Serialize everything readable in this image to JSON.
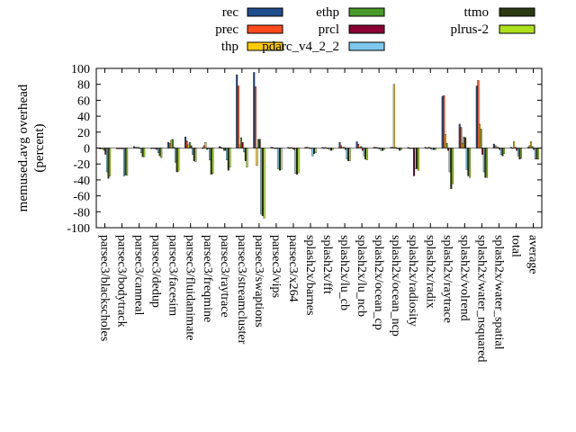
{
  "chart_data": {
    "type": "bar",
    "title": "",
    "xlabel": "",
    "ylabel": "memused.avg overhead\n(percent)",
    "ylim": [
      -100,
      100
    ],
    "yticks": [
      -100,
      -80,
      -60,
      -40,
      -20,
      0,
      20,
      40,
      60,
      80,
      100
    ],
    "grid": false,
    "legend": "top",
    "categories": [
      "parsec3/blackscholes",
      "parsec3/bodytrack",
      "parsec3/canneal",
      "parsec3/dedup",
      "parsec3/facesim",
      "parsec3/fluidanimate",
      "parsec3/freqmine",
      "parsec3/raytrace",
      "parsec3/streamcluster",
      "parsec3/swaptions",
      "parsec3/vips",
      "parsec3/x264",
      "splash2x/barnes",
      "splash2x/fft",
      "splash2x/lu_cb",
      "splash2x/lu_ncb",
      "splash2x/ocean_cp",
      "splash2x/ocean_ncp",
      "splash2x/radiosity",
      "splash2x/radix",
      "splash2x/raytrace",
      "splash2x/volrend",
      "splash2x/water_nsquared",
      "splash2x/water_spatial",
      "total",
      "average"
    ],
    "series": [
      {
        "name": "rec",
        "color": "#1f4e8c",
        "values": [
          -1,
          -1,
          2,
          0,
          7,
          14,
          0,
          2,
          92,
          95,
          1,
          1,
          1,
          1,
          7,
          8,
          1,
          1,
          1,
          1,
          65,
          30,
          78,
          5,
          1,
          1
        ]
      },
      {
        "name": "prec",
        "color": "#ff4a1c",
        "values": [
          -1,
          -1,
          1,
          0,
          6,
          9,
          3,
          1,
          78,
          77,
          1,
          0,
          1,
          0,
          3,
          5,
          1,
          1,
          0,
          0,
          66,
          26,
          85,
          3,
          0,
          3
        ]
      },
      {
        "name": "thp",
        "color": "#ffcc00",
        "values": [
          -1,
          -1,
          1,
          0,
          10,
          4,
          7,
          0,
          4,
          -22,
          0,
          1,
          1,
          1,
          1,
          1,
          1,
          80,
          0,
          1,
          17,
          6,
          30,
          1,
          8,
          8
        ]
      },
      {
        "name": "ethp",
        "color": "#4a9a2a",
        "values": [
          -3,
          -1,
          1,
          -1,
          11,
          7,
          -2,
          -3,
          13,
          11,
          0,
          0,
          0,
          0,
          1,
          2,
          0,
          1,
          0,
          1,
          6,
          14,
          24,
          1,
          1,
          2
        ]
      },
      {
        "name": "prcl",
        "color": "#8a0030",
        "values": [
          -8,
          -1,
          0,
          -2,
          1,
          3,
          -1,
          -3,
          7,
          11,
          0,
          -2,
          0,
          0,
          -2,
          -3,
          -1,
          0,
          -35,
          -1,
          -3,
          13,
          -8,
          -2,
          -3,
          -2
        ]
      },
      {
        "name": "pdarc_v4_2_2",
        "color": "#7ec8f0",
        "values": [
          -30,
          -35,
          -6,
          -6,
          -18,
          -8,
          -15,
          -15,
          -5,
          -83,
          -26,
          -32,
          -10,
          -2,
          -14,
          -10,
          -3,
          -1,
          -26,
          -2,
          -30,
          -27,
          -30,
          -8,
          -10,
          -14
        ]
      },
      {
        "name": "ttmo",
        "color": "#2b3a12",
        "values": [
          -38,
          -34,
          -11,
          -10,
          -30,
          -16,
          -33,
          -28,
          -16,
          -85,
          -28,
          -33,
          -7,
          -3,
          -16,
          -14,
          -3,
          -3,
          -26,
          -2,
          -51,
          -35,
          -37,
          -10,
          -14,
          -14
        ]
      },
      {
        "name": "plrus-2",
        "color": "#aee01c",
        "values": [
          -35,
          -34,
          -11,
          -12,
          -29,
          -17,
          -32,
          -24,
          -24,
          -88,
          -27,
          -31,
          -6,
          -2,
          -16,
          -15,
          -2,
          -2,
          -28,
          -2,
          -45,
          -37,
          -37,
          -7,
          -13,
          -14
        ]
      }
    ]
  }
}
